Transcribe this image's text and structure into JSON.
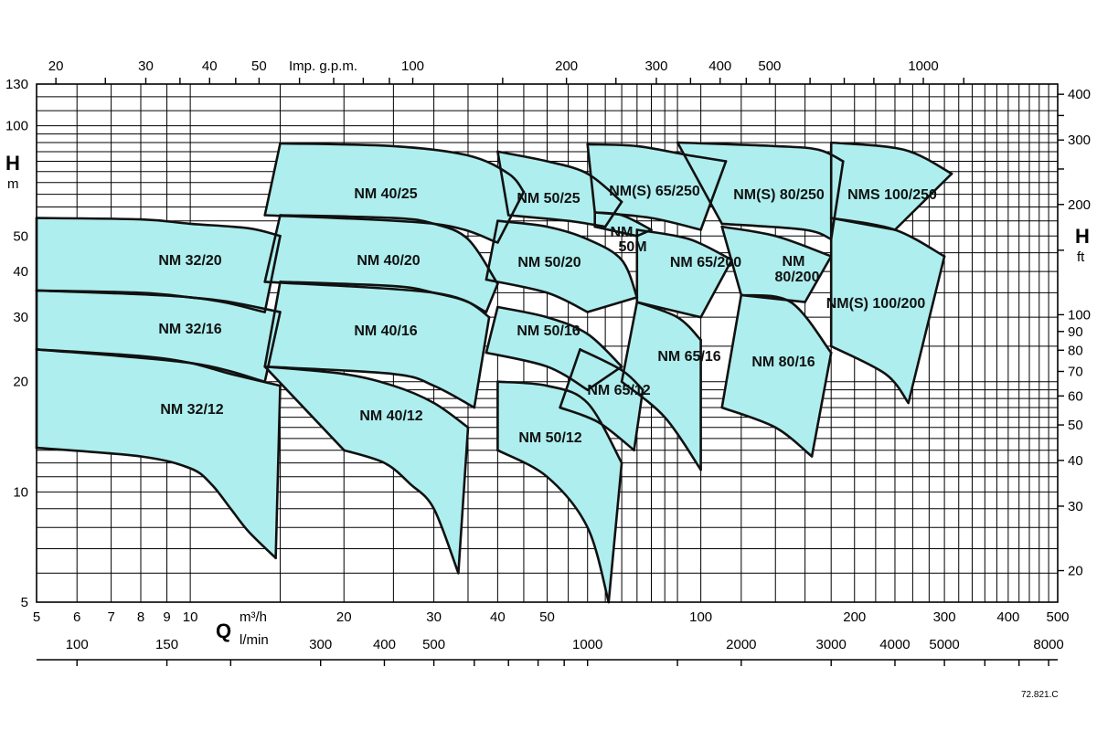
{
  "chart_data": {
    "type": "area",
    "title": "",
    "x_bottom_primary": {
      "quantity": "Q",
      "unit": "m³/h",
      "scale": "log",
      "range": [
        5,
        500
      ],
      "tick_labels": [
        "5",
        "6",
        "7",
        "8",
        "9",
        "10",
        "20",
        "30",
        "40",
        "50",
        "100",
        "200",
        "300",
        "400",
        "500"
      ]
    },
    "x_bottom_secondary": {
      "unit": "l/min",
      "tick_labels": [
        "100",
        "150",
        "300",
        "400",
        "500",
        "1000",
        "2000",
        "3000",
        "4000",
        "5000",
        "8000"
      ]
    },
    "x_top": {
      "unit": "Imp. g.p.m.",
      "tick_labels": [
        "20",
        "30",
        "40",
        "50",
        "100",
        "200",
        "300",
        "400",
        "500",
        "1000"
      ]
    },
    "y_left": {
      "quantity": "H",
      "unit": "m",
      "scale": "log",
      "range": [
        5,
        130
      ],
      "tick_labels": [
        "5",
        "10",
        "20",
        "30",
        "40",
        "50",
        "100",
        "130"
      ]
    },
    "y_right": {
      "quantity": "H",
      "unit": "ft",
      "tick_labels": [
        "20",
        "30",
        "40",
        "50",
        "60",
        "70",
        "80",
        "90",
        "100",
        "200",
        "300",
        "400"
      ]
    },
    "grid": true,
    "reference": "72.821.C",
    "series": [
      {
        "name": "NM 32/12",
        "color": "#aeeeee",
        "top": [
          [
            5,
            24.5
          ],
          [
            8,
            23.5
          ],
          [
            10,
            22.5
          ],
          [
            12,
            21
          ],
          [
            15,
            19.5
          ]
        ],
        "bottom": [
          [
            5,
            13.2
          ],
          [
            8,
            12.5
          ],
          [
            10,
            11.6
          ],
          [
            11,
            10.5
          ],
          [
            12,
            9
          ],
          [
            13,
            7.8
          ],
          [
            14.7,
            6.6
          ]
        ]
      },
      {
        "name": "NM 32/16",
        "color": "#aeeeee",
        "top": [
          [
            5,
            35.5
          ],
          [
            8,
            35
          ],
          [
            10,
            34
          ],
          [
            12,
            33
          ],
          [
            15,
            31
          ]
        ],
        "bottom": [
          [
            5,
            24.5
          ],
          [
            10,
            22.5
          ],
          [
            14,
            20
          ]
        ]
      },
      {
        "name": "NM 32/20",
        "color": "#aeeeee",
        "top": [
          [
            5,
            56
          ],
          [
            8,
            55.5
          ],
          [
            10,
            54
          ],
          [
            13,
            52.5
          ],
          [
            15,
            50
          ]
        ],
        "bottom": [
          [
            5,
            35.5
          ],
          [
            10,
            34
          ],
          [
            14,
            31
          ]
        ]
      },
      {
        "name": "NM 40/12",
        "color": "#aeeeee",
        "top": [
          [
            14,
            22
          ],
          [
            20,
            21
          ],
          [
            25,
            19.5
          ],
          [
            30,
            17.5
          ],
          [
            35,
            15
          ]
        ],
        "bottom": [
          [
            20,
            13
          ],
          [
            24,
            12
          ],
          [
            27,
            10.5
          ],
          [
            30,
            9
          ],
          [
            33.5,
            6
          ]
        ]
      },
      {
        "name": "NM 40/16",
        "color": "#aeeeee",
        "top": [
          [
            15,
            37.5
          ],
          [
            25,
            36.5
          ],
          [
            30,
            35
          ],
          [
            35,
            33
          ],
          [
            38.5,
            30
          ]
        ],
        "bottom": [
          [
            14,
            22
          ],
          [
            25,
            21
          ],
          [
            30,
            19.5
          ],
          [
            36,
            17
          ]
        ]
      },
      {
        "name": "NM 40/20",
        "color": "#aeeeee",
        "top": [
          [
            15,
            57
          ],
          [
            25,
            56
          ],
          [
            30,
            54
          ],
          [
            35,
            49
          ],
          [
            40,
            37
          ]
        ],
        "bottom": [
          [
            14,
            37.5
          ],
          [
            30,
            35
          ],
          [
            38,
            31
          ]
        ]
      },
      {
        "name": "NM 40/25",
        "color": "#aeeeee",
        "top": [
          [
            15,
            89.5
          ],
          [
            25,
            88
          ],
          [
            35,
            83
          ],
          [
            42,
            74
          ],
          [
            45,
            66
          ]
        ],
        "bottom": [
          [
            14,
            57
          ],
          [
            30,
            54
          ],
          [
            40,
            48
          ]
        ]
      },
      {
        "name": "NM 50/12",
        "color": "#aeeeee",
        "top": [
          [
            40,
            20
          ],
          [
            50,
            19.5
          ],
          [
            60,
            17.5
          ],
          [
            70,
            12
          ]
        ],
        "bottom": [
          [
            40,
            13
          ],
          [
            50,
            11
          ],
          [
            60,
            8
          ],
          [
            66,
            5
          ]
        ]
      },
      {
        "name": "NM 50/16",
        "color": "#aeeeee",
        "top": [
          [
            40,
            32
          ],
          [
            50,
            30
          ],
          [
            60,
            27
          ],
          [
            70,
            22
          ]
        ],
        "bottom": [
          [
            38,
            24
          ],
          [
            50,
            22
          ],
          [
            60,
            19
          ]
        ]
      },
      {
        "name": "NM 50/20",
        "color": "#aeeeee",
        "top": [
          [
            40,
            55
          ],
          [
            50,
            53
          ],
          [
            60,
            49
          ],
          [
            70,
            43
          ],
          [
            75,
            34
          ]
        ],
        "bottom": [
          [
            38,
            38
          ],
          [
            50,
            35
          ],
          [
            60,
            31
          ]
        ]
      },
      {
        "name": "NM 50/25",
        "color": "#aeeeee",
        "top": [
          [
            40,
            85
          ],
          [
            50,
            80
          ],
          [
            60,
            74
          ],
          [
            70,
            62
          ]
        ],
        "bottom": [
          [
            42,
            57
          ],
          [
            55,
            55
          ],
          [
            65,
            53
          ]
        ]
      },
      {
        "name": "NM 65/12",
        "color": "#aeeeee",
        "top": [
          [
            58,
            24.5
          ],
          [
            70,
            21.5
          ],
          [
            77,
            19
          ]
        ],
        "bottom": [
          [
            53,
            17
          ],
          [
            63,
            15.5
          ],
          [
            74,
            13
          ]
        ]
      },
      {
        "name": "NM 65/16",
        "color": "#aeeeee",
        "top": [
          [
            75,
            33
          ],
          [
            90,
            30
          ],
          [
            100,
            26
          ]
        ],
        "bottom": [
          [
            70,
            20
          ],
          [
            85,
            16
          ],
          [
            100,
            11.5
          ]
        ]
      },
      {
        "name": "NM 65/200",
        "color": "#aeeeee",
        "top": [
          [
            75,
            52
          ],
          [
            95,
            49
          ],
          [
            115,
            43
          ]
        ],
        "bottom": [
          [
            75,
            33
          ],
          [
            100,
            30
          ]
        ]
      },
      {
        "name": "NM 50M",
        "color": "#aeeeee",
        "top": [
          [
            62,
            58
          ],
          [
            70,
            57
          ],
          [
            80,
            52
          ]
        ],
        "bottom": [
          [
            62,
            53
          ],
          [
            75,
            50
          ]
        ]
      },
      {
        "name": "NM(S) 65/250",
        "color": "#aeeeee",
        "top": [
          [
            60,
            89
          ],
          [
            75,
            88
          ],
          [
            95,
            83
          ],
          [
            112,
            80
          ]
        ],
        "bottom": [
          [
            62,
            58
          ],
          [
            80,
            56
          ],
          [
            100,
            52
          ]
        ]
      },
      {
        "name": "NM 80/16",
        "color": "#aeeeee",
        "top": [
          [
            120,
            34.5
          ],
          [
            150,
            33
          ],
          [
            180,
            24
          ]
        ],
        "bottom": [
          [
            110,
            17
          ],
          [
            140,
            15
          ],
          [
            165,
            12.5
          ]
        ]
      },
      {
        "name": "NM 80/200",
        "color": "#aeeeee",
        "top": [
          [
            110,
            53
          ],
          [
            140,
            50
          ],
          [
            180,
            44
          ]
        ],
        "bottom": [
          [
            120,
            34.5
          ],
          [
            160,
            33
          ]
        ]
      },
      {
        "name": "NM(S) 80/250",
        "color": "#aeeeee",
        "top": [
          [
            90,
            90
          ],
          [
            140,
            88
          ],
          [
            170,
            86
          ],
          [
            190,
            80
          ]
        ],
        "bottom": [
          [
            110,
            54
          ],
          [
            160,
            52
          ],
          [
            180,
            49
          ]
        ]
      },
      {
        "name": "NM(S) 100/200",
        "color": "#aeeeee",
        "top": [
          [
            180,
            56
          ],
          [
            240,
            52
          ],
          [
            300,
            44
          ]
        ],
        "bottom": [
          [
            180,
            25
          ],
          [
            230,
            21
          ],
          [
            255,
            17.5
          ]
        ]
      },
      {
        "name": "NMS 100/250",
        "color": "#aeeeee",
        "top": [
          [
            180,
            90
          ],
          [
            250,
            86
          ],
          [
            310,
            74
          ]
        ],
        "bottom": [
          [
            180,
            56
          ],
          [
            240,
            52
          ]
        ]
      }
    ]
  }
}
